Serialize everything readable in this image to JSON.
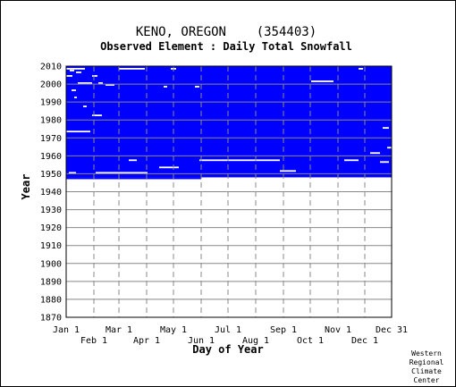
{
  "chart_data": {
    "type": "heatmap",
    "title": "KENO, OREGON    (354403)",
    "subtitle": "Observed Element : Daily Total Snowfall",
    "xlabel": "Day of Year",
    "ylabel": "Year",
    "credit": [
      "Western",
      "Regional",
      "Climate",
      "Center"
    ],
    "xlim": [
      1,
      365
    ],
    "ylim": [
      1870,
      2010
    ],
    "x_ticks": [
      {
        "label": "Jan 1",
        "day": 1,
        "row": 1
      },
      {
        "label": "Feb 1",
        "day": 32,
        "row": 2
      },
      {
        "label": "Mar 1",
        "day": 60,
        "row": 1
      },
      {
        "label": "Apr 1",
        "day": 91,
        "row": 2
      },
      {
        "label": "May 1",
        "day": 121,
        "row": 1
      },
      {
        "label": "Jun 1",
        "day": 152,
        "row": 2
      },
      {
        "label": "Jul 1",
        "day": 182,
        "row": 1
      },
      {
        "label": "Aug 1",
        "day": 213,
        "row": 2
      },
      {
        "label": "Sep 1",
        "day": 244,
        "row": 1
      },
      {
        "label": "Oct 1",
        "day": 274,
        "row": 2
      },
      {
        "label": "Nov 1",
        "day": 305,
        "row": 1
      },
      {
        "label": "Dec 1",
        "day": 335,
        "row": 2
      },
      {
        "label": "Dec 31",
        "day": 365,
        "row": 1
      }
    ],
    "y_ticks": [
      1870,
      1880,
      1890,
      1900,
      1910,
      1920,
      1930,
      1940,
      1950,
      1960,
      1970,
      1980,
      1990,
      2000,
      2010
    ],
    "data_color": "#0000ff",
    "grid": true,
    "observed_period": {
      "start_year": 1947,
      "end_year": 2009,
      "partial_start": {
        "year": 1947,
        "from_day": 1,
        "to_day": 152
      }
    },
    "missing_segments": [
      {
        "year": 2008,
        "start_day": 1,
        "end_day": 22
      },
      {
        "year": 2008,
        "start_day": 60,
        "end_day": 89
      },
      {
        "year": 2008,
        "start_day": 118,
        "end_day": 124
      },
      {
        "year": 2008,
        "start_day": 328,
        "end_day": 333
      },
      {
        "year": 2007,
        "start_day": 5,
        "end_day": 10
      },
      {
        "year": 2006,
        "start_day": 12,
        "end_day": 18
      },
      {
        "year": 2004,
        "start_day": 1,
        "end_day": 8
      },
      {
        "year": 2004,
        "start_day": 30,
        "end_day": 36
      },
      {
        "year": 2001,
        "start_day": 275,
        "end_day": 300
      },
      {
        "year": 2000,
        "start_day": 14,
        "end_day": 30
      },
      {
        "year": 2000,
        "start_day": 37,
        "end_day": 42
      },
      {
        "year": 1999,
        "start_day": 45,
        "end_day": 55
      },
      {
        "year": 1998,
        "start_day": 145,
        "end_day": 150
      },
      {
        "year": 1998,
        "start_day": 110,
        "end_day": 114
      },
      {
        "year": 1996,
        "start_day": 7,
        "end_day": 12
      },
      {
        "year": 1992,
        "start_day": 10,
        "end_day": 13
      },
      {
        "year": 1987,
        "start_day": 20,
        "end_day": 24
      },
      {
        "year": 1982,
        "start_day": 30,
        "end_day": 41
      },
      {
        "year": 1975,
        "start_day": 355,
        "end_day": 362
      },
      {
        "year": 1973,
        "start_day": 1,
        "end_day": 28
      },
      {
        "year": 1964,
        "start_day": 360,
        "end_day": 365
      },
      {
        "year": 1961,
        "start_day": 341,
        "end_day": 352
      },
      {
        "year": 1957,
        "start_day": 71,
        "end_day": 80
      },
      {
        "year": 1957,
        "start_day": 150,
        "end_day": 240
      },
      {
        "year": 1957,
        "start_day": 312,
        "end_day": 328
      },
      {
        "year": 1956,
        "start_day": 352,
        "end_day": 362
      },
      {
        "year": 1953,
        "start_day": 105,
        "end_day": 127
      },
      {
        "year": 1951,
        "start_day": 240,
        "end_day": 258
      },
      {
        "year": 1950,
        "start_day": 34,
        "end_day": 92
      },
      {
        "year": 1950,
        "start_day": 4,
        "end_day": 12
      }
    ]
  }
}
